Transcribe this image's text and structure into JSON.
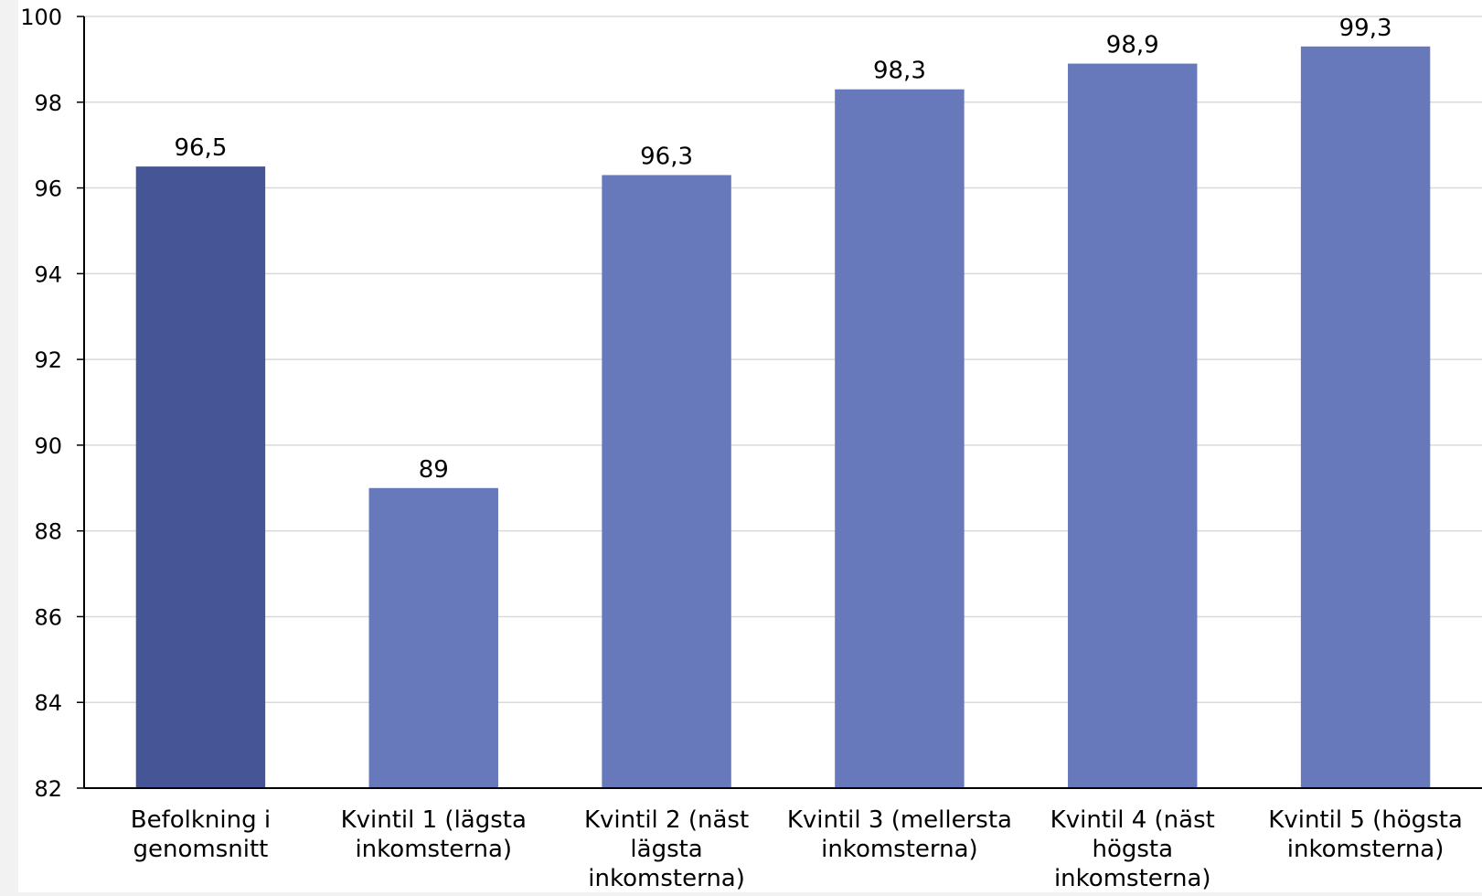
{
  "chart_data": {
    "type": "bar",
    "title": "",
    "xlabel": "",
    "ylabel": "",
    "ylim": [
      82,
      100
    ],
    "yticks": [
      82,
      84,
      86,
      88,
      90,
      92,
      94,
      96,
      98,
      100
    ],
    "ytick_labels": [
      "82",
      "84",
      "86",
      "88",
      "90",
      "92",
      "94",
      "96",
      "98",
      "100"
    ],
    "grid": true,
    "legend": "none",
    "categories": [
      [
        "Befolkning i",
        "genomsnitt"
      ],
      [
        "Kvintil 1 (lägsta",
        "inkomsterna)"
      ],
      [
        "Kvintil 2 (näst",
        "lägsta",
        "inkomsterna)"
      ],
      [
        "Kvintil 3 (mellersta",
        "inkomsterna)"
      ],
      [
        "Kvintil 4 (näst",
        "högsta",
        "inkomsterna)"
      ],
      [
        "Kvintil 5 (högsta",
        "inkomsterna)"
      ]
    ],
    "values": [
      96.5,
      89,
      96.3,
      98.3,
      98.9,
      99.3
    ],
    "data_labels": [
      "96,5",
      "89",
      "96,3",
      "98,3",
      "98,9",
      "99,3"
    ],
    "colors": {
      "highlight_bar": "#465595",
      "bar": "#6779ba",
      "grid": "#d9d9d9",
      "axis": "#000000",
      "plot_background": "#ffffff"
    },
    "highlight_index": 0
  }
}
